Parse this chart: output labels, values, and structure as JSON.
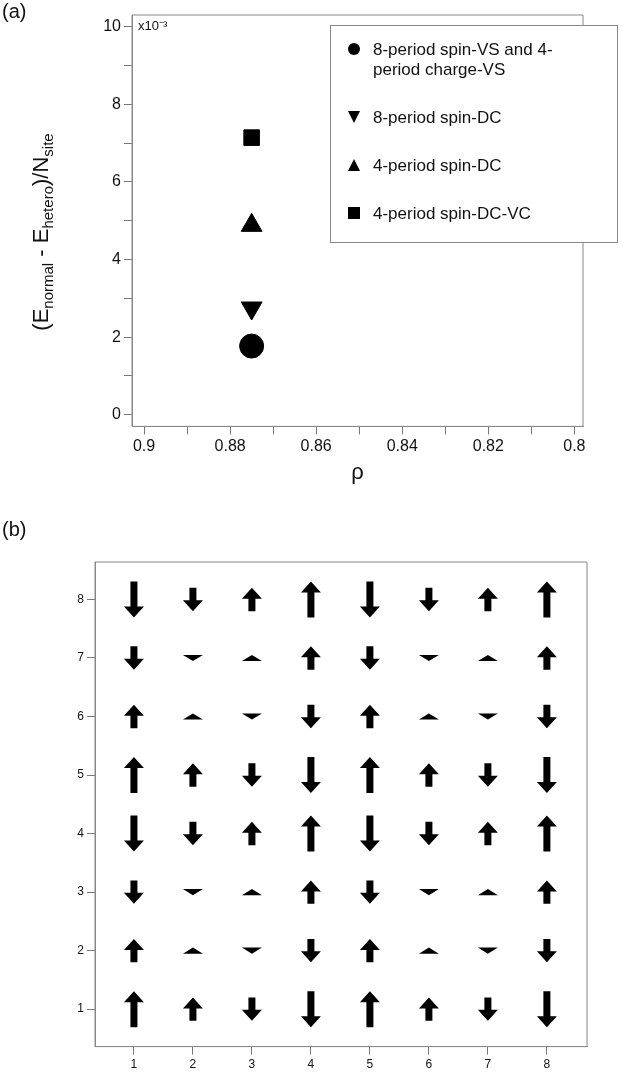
{
  "chart_data": [
    {
      "type": "scatter",
      "title": "(a)",
      "xlabel": "ρ",
      "ylabel": "(E$_{normal}$ - E$_{hetero}$)/N$_{site}$",
      "legend": "top right",
      "grid": false,
      "xlim": [
        0.9028,
        0.798
      ],
      "xticks": [
        0.9,
        {
          "value": 0.89,
          "label": null
        },
        0.88,
        {
          "value": 0.87,
          "label": null
        },
        0.86,
        {
          "value": 0.85,
          "label": null
        },
        0.84,
        {
          "value": 0.83,
          "label": null
        },
        0.82,
        {
          "value": 0.81,
          "label": null
        },
        0.8
      ],
      "ylim": [
        -0.3,
        10.3
      ],
      "yticks": [
        0,
        {
          "value": 1,
          "label": null
        },
        2,
        {
          "value": 3,
          "label": null
        },
        4,
        {
          "value": 5,
          "label": null
        },
        6,
        {
          "value": 7,
          "label": null
        },
        8,
        {
          "value": 9,
          "label": null
        },
        10
      ],
      "annotations": [
        "x10⁻³"
      ],
      "series": [
        {
          "name": "8-period spin-VS and 4-period charge-VS",
          "color": "#000000",
          "marker": "circle",
          "x": [
            0.875
          ],
          "values": [
            1.77
          ]
        },
        {
          "name": "8-period spin-DC",
          "color": "#000000",
          "marker": "triangle-down",
          "x": [
            0.875
          ],
          "values": [
            2.75
          ]
        },
        {
          "name": "4-period spin-DC",
          "color": "#000000",
          "marker": "triangle",
          "x": [
            0.875
          ],
          "values": [
            4.88
          ]
        },
        {
          "name": "4-period spin-DC-VC",
          "color": "#000000",
          "marker": "square",
          "x": [
            0.875
          ],
          "values": [
            7.14
          ]
        }
      ]
    },
    {
      "type": "scatter",
      "title": "(b)",
      "grid": false,
      "legend": false,
      "xlim": [
        0.34,
        8.68
      ],
      "xticks": [
        1,
        2,
        3,
        4,
        5,
        6,
        7,
        8
      ],
      "ylim": [
        0.36,
        8.64
      ],
      "yticks": [
        1,
        2,
        3,
        4,
        5,
        6,
        7,
        8
      ],
      "series": [
        {
          "color": "#000000",
          "marker": "triangle",
          "x": [
            3,
            4,
            7,
            8,
            3,
            4,
            7,
            8,
            1,
            2,
            5,
            6,
            1,
            2,
            5,
            6,
            3,
            4,
            7,
            8,
            3,
            4,
            7,
            8,
            1,
            2,
            5,
            6,
            1,
            2,
            5,
            6
          ],
          "values": [
            8,
            8,
            8,
            8,
            7,
            7,
            7,
            7,
            6,
            6,
            6,
            6,
            5,
            5,
            5,
            5,
            4,
            4,
            4,
            4,
            3,
            3,
            3,
            3,
            2,
            2,
            2,
            2,
            1,
            1,
            1,
            1
          ],
          "sizes": [
            0.65,
            1,
            0.65,
            1,
            0.17,
            0.65,
            0.17,
            0.65,
            0.65,
            0.17,
            0.65,
            0.17,
            1,
            0.65,
            1,
            0.65,
            0.65,
            1,
            0.65,
            1,
            0.17,
            0.65,
            0.17,
            0.65,
            0.65,
            0.17,
            0.65,
            0.17,
            1,
            0.65,
            1,
            0.65
          ]
        },
        {
          "color": "#000000",
          "marker": "triangle-down",
          "x": [
            1,
            2,
            5,
            6,
            1,
            2,
            5,
            6,
            3,
            4,
            7,
            8,
            3,
            4,
            7,
            8,
            1,
            2,
            5,
            6,
            1,
            2,
            5,
            6,
            3,
            4,
            7,
            8,
            3,
            4,
            7,
            8
          ],
          "values": [
            8,
            8,
            8,
            8,
            7,
            7,
            7,
            7,
            6,
            6,
            6,
            6,
            5,
            5,
            5,
            5,
            4,
            4,
            4,
            4,
            3,
            3,
            3,
            3,
            2,
            2,
            2,
            2,
            1,
            1,
            1,
            1
          ],
          "sizes": [
            1,
            0.65,
            1,
            0.65,
            0.65,
            0.17,
            0.65,
            0.17,
            0.17,
            0.65,
            0.17,
            0.65,
            0.65,
            1,
            0.65,
            1,
            1,
            0.65,
            1,
            0.65,
            0.65,
            0.17,
            0.65,
            0.17,
            0.17,
            0.65,
            0.17,
            0.65,
            0.65,
            1,
            0.65,
            1
          ]
        }
      ]
    }
  ]
}
